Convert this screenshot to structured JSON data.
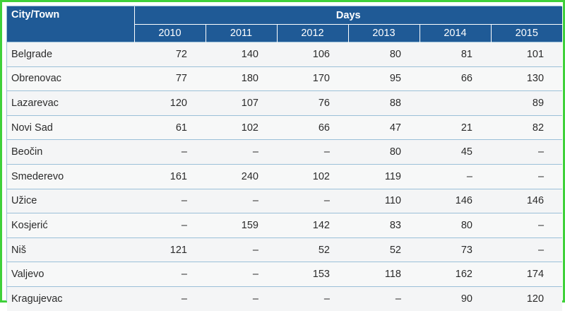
{
  "table": {
    "city_header": "City/Town",
    "days_header": "Days",
    "years": [
      "2010",
      "2011",
      "2012",
      "2013",
      "2014",
      "2015"
    ],
    "rows": [
      {
        "city": "Belgrade",
        "values": [
          "72",
          "140",
          "106",
          "80",
          "81",
          "101"
        ]
      },
      {
        "city": "Obrenovac",
        "values": [
          "77",
          "180",
          "170",
          "95",
          "66",
          "130"
        ]
      },
      {
        "city": "Lazarevac",
        "values": [
          "120",
          "107",
          "76",
          "88",
          "",
          "89"
        ]
      },
      {
        "city": "Novi Sad",
        "values": [
          "61",
          "102",
          "66",
          "47",
          "21",
          "82"
        ]
      },
      {
        "city": "Beočin",
        "values": [
          "–",
          "–",
          "–",
          "80",
          "45",
          "–"
        ]
      },
      {
        "city": "Smederevo",
        "values": [
          "161",
          "240",
          "102",
          "119",
          "–",
          "–"
        ]
      },
      {
        "city": "Užice",
        "values": [
          "–",
          "–",
          "–",
          "110",
          "146",
          "146"
        ]
      },
      {
        "city": "Kosjerić",
        "values": [
          "–",
          "159",
          "142",
          "83",
          "80",
          "–"
        ]
      },
      {
        "city": "Niš",
        "values": [
          "121",
          "–",
          "52",
          "52",
          "73",
          "–"
        ]
      },
      {
        "city": "Valjevo",
        "values": [
          "–",
          "–",
          "153",
          "118",
          "162",
          "174"
        ]
      },
      {
        "city": "Kragujevac",
        "values": [
          "–",
          "–",
          "–",
          "–",
          "90",
          "120"
        ]
      }
    ]
  },
  "colors": {
    "header_bg": "#1f5a96",
    "frame": "#3fd13a",
    "row_line": "#9bc0d8"
  }
}
